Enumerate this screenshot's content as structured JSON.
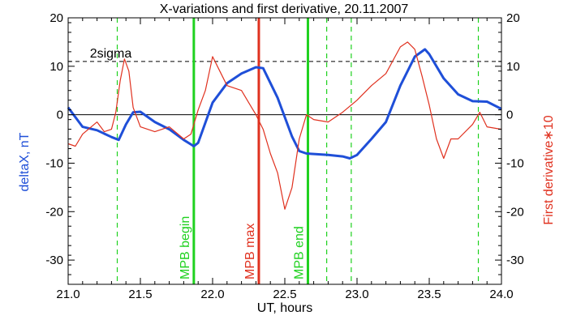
{
  "chart_data": {
    "type": "line",
    "title": "X-variations and first derivative, 20.11.2007",
    "xlabel": "UT, hours",
    "ylabel_left": "deltaX, nT",
    "ylabel_right": "First derivative∗10",
    "xlim": [
      21.0,
      24.0
    ],
    "ylim": [
      -35,
      20
    ],
    "x_ticks": [
      "21.0",
      "21.5",
      "22.0",
      "22.5",
      "23.0",
      "23.5",
      "24.0"
    ],
    "y_ticks": [
      "20",
      "10",
      "0",
      "-10",
      "-20",
      "-30"
    ],
    "colors": {
      "deltaX": "#1f4fd8",
      "derivative": "#e0311f",
      "marker": "#1fd11f",
      "dashed_marker": "#1fd11f"
    },
    "series": [
      {
        "key": "deltaX",
        "x": [
          21.0,
          21.1,
          21.2,
          21.3,
          21.35,
          21.4,
          21.45,
          21.5,
          21.6,
          21.7,
          21.8,
          21.87,
          21.9,
          22.0,
          22.1,
          22.2,
          22.3,
          22.35,
          22.45,
          22.55,
          22.6,
          22.65,
          22.8,
          22.9,
          22.95,
          23.0,
          23.1,
          23.2,
          23.3,
          23.4,
          23.47,
          23.5,
          23.6,
          23.7,
          23.8,
          23.9,
          24.0
        ],
        "y": [
          1.5,
          -2.5,
          -3.2,
          -4.6,
          -5.2,
          -2.0,
          0.5,
          0.6,
          -1.5,
          -3.0,
          -5.2,
          -6.5,
          -5.8,
          2.5,
          6.5,
          8.5,
          9.8,
          9.6,
          3.5,
          -4.5,
          -7.5,
          -8.0,
          -8.3,
          -8.6,
          -9.0,
          -8.3,
          -5.0,
          -1.5,
          6.0,
          12.0,
          13.5,
          12.5,
          7.5,
          4.2,
          2.8,
          2.7,
          1.2
        ]
      },
      {
        "key": "derivative",
        "x": [
          21.0,
          21.05,
          21.1,
          21.2,
          21.25,
          21.3,
          21.33,
          21.36,
          21.39,
          21.42,
          21.45,
          21.5,
          21.55,
          21.6,
          21.7,
          21.8,
          21.85,
          21.9,
          21.95,
          22.0,
          22.05,
          22.1,
          22.15,
          22.2,
          22.25,
          22.3,
          22.35,
          22.4,
          22.45,
          22.5,
          22.55,
          22.6,
          22.65,
          22.7,
          22.8,
          22.9,
          23.0,
          23.1,
          23.2,
          23.3,
          23.35,
          23.4,
          23.45,
          23.5,
          23.55,
          23.6,
          23.65,
          23.7,
          23.8,
          23.85,
          23.9,
          24.0
        ],
        "y": [
          -6.0,
          -6.5,
          -4.0,
          -1.5,
          -3.5,
          -3.0,
          0.5,
          7.0,
          11.5,
          9.0,
          1.5,
          -2.5,
          -3.0,
          -3.5,
          -2.5,
          -5.0,
          -4.0,
          1.0,
          5.0,
          12.0,
          9.0,
          6.0,
          5.5,
          5.0,
          2.5,
          0.0,
          -3.0,
          -8.0,
          -12.0,
          -19.5,
          -15.0,
          -5.0,
          0.0,
          -1.0,
          -1.5,
          0.5,
          3.0,
          6.0,
          8.5,
          14.0,
          15.0,
          13.5,
          8.0,
          2.0,
          -5.0,
          -9.0,
          -5.0,
          -5.0,
          -2.0,
          0.5,
          -2.5,
          -3.0
        ]
      }
    ],
    "hlines": [
      {
        "y": 0,
        "style": "solid"
      },
      {
        "y": 11,
        "style": "dashed",
        "label": "2sigma"
      }
    ],
    "vlines": [
      {
        "x": 21.34,
        "style": "dashed",
        "color": "green"
      },
      {
        "x": 21.87,
        "style": "solid",
        "color": "green",
        "label": "MPB begin"
      },
      {
        "x": 22.32,
        "style": "solid",
        "color": "red",
        "label": "MPB max"
      },
      {
        "x": 22.66,
        "style": "solid",
        "color": "green",
        "label": "MPB end"
      },
      {
        "x": 22.79,
        "style": "dashed",
        "color": "green"
      },
      {
        "x": 22.96,
        "style": "dashed",
        "color": "green"
      },
      {
        "x": 23.84,
        "style": "dashed",
        "color": "green"
      }
    ],
    "grid": false
  }
}
